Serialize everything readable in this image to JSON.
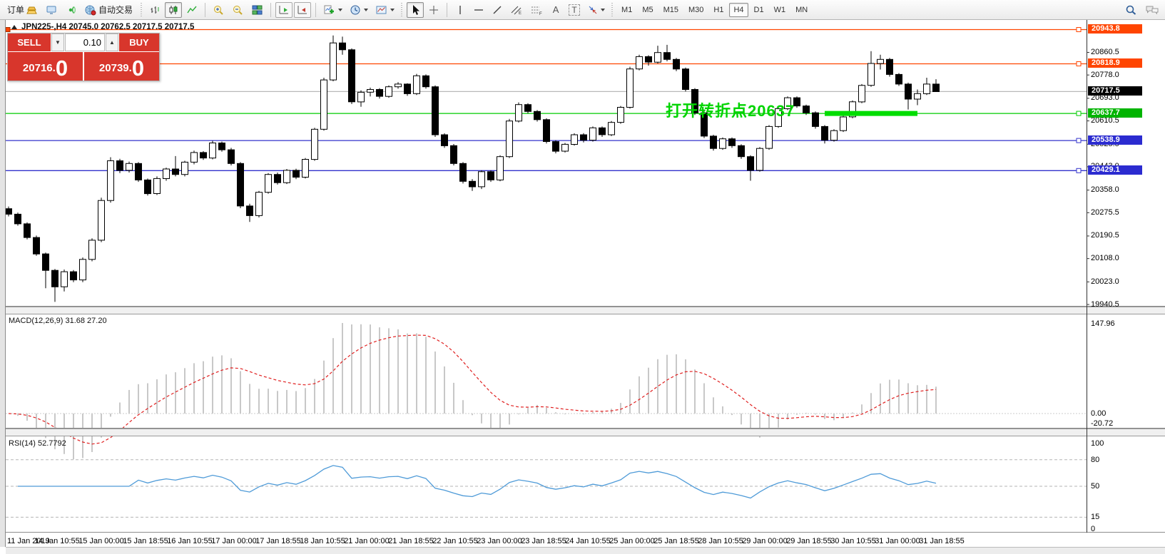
{
  "toolbar": {
    "order_label": "订单",
    "autotrade_label": "自动交易",
    "timeframes": [
      "M1",
      "M5",
      "M15",
      "M30",
      "H1",
      "H4",
      "D1",
      "W1",
      "MN"
    ],
    "active_timeframe": "H4",
    "text_icon_a": "A",
    "text_icon_t": "T"
  },
  "trade_panel": {
    "sell_label": "SELL",
    "buy_label": "BUY",
    "lot_value": "0.10",
    "sell_price_main": "20716.",
    "sell_price_big": "0",
    "buy_price_main": "20739.",
    "buy_price_big": "0"
  },
  "chart": {
    "title": "JPN225-,H4 20745.0 20762.5 20717.5 20717.5",
    "annotation_text": "打开转折点20637"
  },
  "chart_data": {
    "type": "candlestick",
    "symbol": "JPN225-",
    "timeframe": "H4",
    "ylim": [
      19938,
      20958
    ],
    "grid": false,
    "price_ticks": [
      20860.5,
      20778.0,
      20693.0,
      20610.5,
      20525.5,
      20443.0,
      20358.0,
      20275.5,
      20190.5,
      20108.0,
      20023.0,
      19940.5
    ],
    "level_lines": [
      {
        "price": 20943.8,
        "badge": "20943.8",
        "color": "#ff4500",
        "badge_bg": "#ff4500",
        "handle": true
      },
      {
        "price": 20818.9,
        "badge": "20818.9",
        "color": "#ff4500",
        "badge_bg": "#ff4500",
        "handle": true
      },
      {
        "price": 20717.5,
        "badge": "20717.5",
        "color": "#b8b8b8",
        "badge_bg": "#000000",
        "handle": false
      },
      {
        "price": 20637.7,
        "badge": "20637.7",
        "color": "#00cc00",
        "badge_bg": "#00b400",
        "handle": true
      },
      {
        "price": 20538.9,
        "badge": "20538.9",
        "color": "#3333cc",
        "badge_bg": "#2b2bd0",
        "handle": true
      },
      {
        "price": 20429.1,
        "badge": "20429.1",
        "color": "#3333cc",
        "badge_bg": "#2b2bd0",
        "handle": true
      }
    ],
    "highlight_segment": {
      "price": 20637.7,
      "bar_from": 88,
      "bar_to": 98,
      "color": "#00dd00",
      "thickness": 7
    },
    "time_labels": [
      "11 Jan 2019",
      "14 Jan 10:55",
      "15 Jan 00:00",
      "15 Jan 18:55",
      "16 Jan 10:55",
      "17 Jan 00:00",
      "17 Jan 18:55",
      "18 Jan 10:55",
      "21 Jan 00:00",
      "21 Jan 18:55",
      "22 Jan 10:55",
      "23 Jan 00:00",
      "23 Jan 18:55",
      "24 Jan 10:55",
      "25 Jan 00:00",
      "25 Jan 18:55",
      "28 Jan 10:55",
      "29 Jan 00:00",
      "29 Jan 18:55",
      "30 Jan 10:55",
      "31 Jan 00:00",
      "31 Jan 18:55"
    ],
    "ohlc": [
      [
        20290,
        20298,
        20262,
        20270
      ],
      [
        20270,
        20276,
        20228,
        20235
      ],
      [
        20235,
        20240,
        20178,
        20185
      ],
      [
        20185,
        20192,
        20118,
        20125
      ],
      [
        20125,
        20130,
        20000,
        20065
      ],
      [
        20065,
        20070,
        19950,
        20005
      ],
      [
        20005,
        20068,
        19988,
        20060
      ],
      [
        20060,
        20066,
        20022,
        20030
      ],
      [
        20030,
        20112,
        20022,
        20105
      ],
      [
        20105,
        20182,
        20098,
        20175
      ],
      [
        20175,
        20330,
        20168,
        20320
      ],
      [
        20320,
        20478,
        20312,
        20465
      ],
      [
        20465,
        20472,
        20420,
        20430
      ],
      [
        20430,
        20462,
        20422,
        20455
      ],
      [
        20455,
        20460,
        20388,
        20395
      ],
      [
        20395,
        20400,
        20338,
        20345
      ],
      [
        20345,
        20408,
        20340,
        20400
      ],
      [
        20400,
        20440,
        20392,
        20435
      ],
      [
        20435,
        20482,
        20408,
        20415
      ],
      [
        20415,
        20465,
        20408,
        20460
      ],
      [
        20460,
        20502,
        20452,
        20495
      ],
      [
        20495,
        20500,
        20468,
        20475
      ],
      [
        20475,
        20538,
        20470,
        20530
      ],
      [
        20530,
        20535,
        20498,
        20505
      ],
      [
        20505,
        20512,
        20448,
        20455
      ],
      [
        20455,
        20460,
        20292,
        20300
      ],
      [
        20300,
        20308,
        20242,
        20265
      ],
      [
        20265,
        20355,
        20258,
        20350
      ],
      [
        20350,
        20420,
        20345,
        20415
      ],
      [
        20415,
        20422,
        20378,
        20385
      ],
      [
        20385,
        20435,
        20380,
        20430
      ],
      [
        20430,
        20436,
        20398,
        20405
      ],
      [
        20405,
        20475,
        20400,
        20470
      ],
      [
        20470,
        20585,
        20465,
        20580
      ],
      [
        20580,
        20768,
        20575,
        20760
      ],
      [
        20760,
        20922,
        20755,
        20895
      ],
      [
        20895,
        20918,
        20852,
        20870
      ],
      [
        20870,
        20875,
        20672,
        20680
      ],
      [
        20680,
        20722,
        20662,
        20715
      ],
      [
        20715,
        20732,
        20700,
        20725
      ],
      [
        20725,
        20730,
        20692,
        20700
      ],
      [
        20700,
        20740,
        20695,
        20735
      ],
      [
        20735,
        20752,
        20728,
        20745
      ],
      [
        20745,
        20748,
        20702,
        20710
      ],
      [
        20710,
        20782,
        20705,
        20775
      ],
      [
        20775,
        20780,
        20728,
        20735
      ],
      [
        20735,
        20740,
        20552,
        20560
      ],
      [
        20560,
        20565,
        20512,
        20520
      ],
      [
        20520,
        20526,
        20448,
        20455
      ],
      [
        20455,
        20460,
        20382,
        20390
      ],
      [
        20390,
        20398,
        20355,
        20370
      ],
      [
        20370,
        20430,
        20362,
        20425
      ],
      [
        20425,
        20430,
        20388,
        20395
      ],
      [
        20395,
        20485,
        20390,
        20480
      ],
      [
        20480,
        20618,
        20475,
        20610
      ],
      [
        20610,
        20678,
        20605,
        20670
      ],
      [
        20670,
        20675,
        20638,
        20645
      ],
      [
        20645,
        20650,
        20608,
        20615
      ],
      [
        20615,
        20620,
        20528,
        20535
      ],
      [
        20535,
        20540,
        20492,
        20500
      ],
      [
        20500,
        20530,
        20495,
        20525
      ],
      [
        20525,
        20565,
        20520,
        20560
      ],
      [
        20560,
        20566,
        20532,
        20540
      ],
      [
        20540,
        20590,
        20535,
        20585
      ],
      [
        20585,
        20590,
        20552,
        20560
      ],
      [
        20560,
        20610,
        20555,
        20605
      ],
      [
        20605,
        20665,
        20600,
        20660
      ],
      [
        20660,
        20808,
        20655,
        20800
      ],
      [
        20800,
        20852,
        20795,
        20845
      ],
      [
        20845,
        20850,
        20812,
        20825
      ],
      [
        20825,
        20885,
        20820,
        20860
      ],
      [
        20860,
        20888,
        20828,
        20835
      ],
      [
        20835,
        20840,
        20792,
        20800
      ],
      [
        20800,
        20805,
        20718,
        20725
      ],
      [
        20725,
        20730,
        20632,
        20640
      ],
      [
        20640,
        20645,
        20548,
        20555
      ],
      [
        20555,
        20560,
        20502,
        20510
      ],
      [
        20510,
        20550,
        20505,
        20545
      ],
      [
        20545,
        20550,
        20512,
        20520
      ],
      [
        20520,
        20525,
        20472,
        20480
      ],
      [
        20480,
        20485,
        20392,
        20430
      ],
      [
        20430,
        20515,
        20425,
        20510
      ],
      [
        20510,
        20595,
        20505,
        20590
      ],
      [
        20590,
        20660,
        20585,
        20655
      ],
      [
        20655,
        20700,
        20650,
        20695
      ],
      [
        20695,
        20700,
        20658,
        20665
      ],
      [
        20665,
        20670,
        20632,
        20640
      ],
      [
        20640,
        20645,
        20582,
        20590
      ],
      [
        20590,
        20595,
        20528,
        20540
      ],
      [
        20540,
        20580,
        20535,
        20575
      ],
      [
        20575,
        20630,
        20570,
        20625
      ],
      [
        20625,
        20685,
        20620,
        20680
      ],
      [
        20680,
        20745,
        20675,
        20740
      ],
      [
        20740,
        20865,
        20735,
        20820
      ],
      [
        20820,
        20852,
        20798,
        20835
      ],
      [
        20835,
        20840,
        20772,
        20780
      ],
      [
        20780,
        20785,
        20738,
        20745
      ],
      [
        20745,
        20750,
        20652,
        20690
      ],
      [
        20690,
        20725,
        20668,
        20710
      ],
      [
        20710,
        20768,
        20705,
        20745
      ],
      [
        20745,
        20762.5,
        20717.5,
        20717.5
      ]
    ],
    "indicators": {
      "macd": {
        "label": "MACD(12,26,9) 31.68 27.20",
        "params": [
          12,
          26,
          9
        ],
        "axis_max": "147.96",
        "axis_zero": "0.00",
        "axis_min": "-20.72",
        "histogram_color": "#c8c8c8",
        "signal_color": "#e02020"
      },
      "rsi": {
        "label": "RSI(14) 52.7792",
        "period": 14,
        "levels": [
          80,
          50,
          15
        ],
        "axis": [
          "100",
          "80",
          "50",
          "15",
          "0"
        ],
        "line_color": "#4f9bd8"
      }
    }
  }
}
